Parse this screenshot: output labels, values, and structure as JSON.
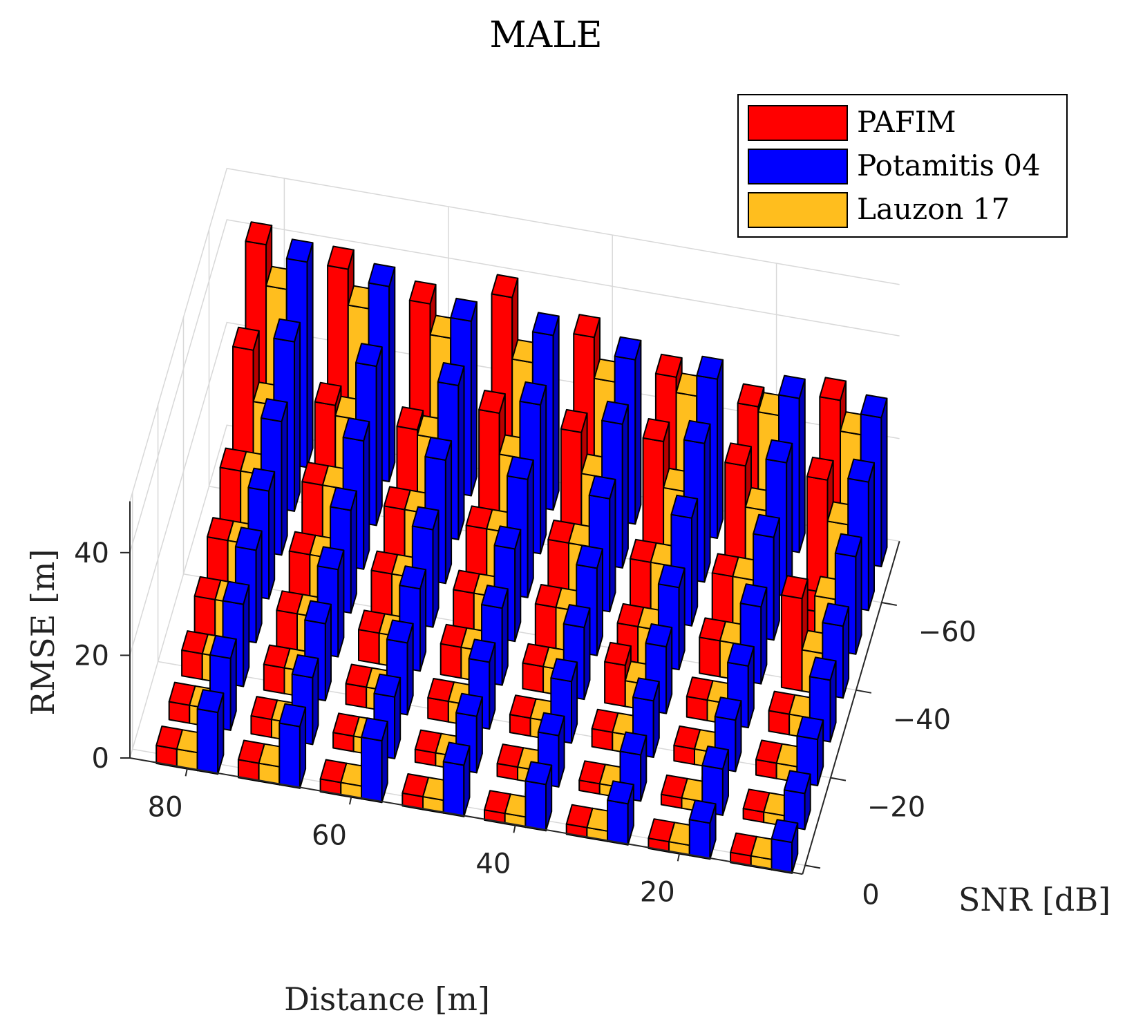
{
  "chart_data": {
    "type": "bar3d",
    "title": "MALE",
    "xlabel": "Distance [m]",
    "ylabel": "SNR [dB]",
    "zlabel": "RMSE [m]",
    "zlim": [
      0,
      50
    ],
    "distance_values": [
      85,
      80,
      75,
      70,
      65,
      60,
      55,
      50,
      45,
      40,
      35,
      30,
      25,
      20,
      15,
      10
    ],
    "snr_values": [
      0,
      -10,
      -20,
      -30,
      -40,
      -50,
      -60,
      -70
    ],
    "distance_ticks": [
      80,
      60,
      40,
      20
    ],
    "snr_ticks": [
      0,
      -20,
      -40,
      -60
    ],
    "rmse_ticks": [
      0,
      20,
      40
    ],
    "series": [
      {
        "name": "PAFIM",
        "color": "#ff0000"
      },
      {
        "name": "Potamitis 04",
        "color": "#0000ff"
      },
      {
        "name": "Lauzon 17",
        "color": "#ffbe1e"
      }
    ],
    "groups": [
      {
        "snr": 0,
        "distance": 80,
        "PAFIM": 3.5,
        "Potamitis 04": 12,
        "Lauzon 17": 3.5
      },
      {
        "snr": 0,
        "distance": 70,
        "PAFIM": 3.5,
        "Potamitis 04": 12,
        "Lauzon 17": 3.5
      },
      {
        "snr": 0,
        "distance": 60,
        "PAFIM": 2.5,
        "Potamitis 04": 12,
        "Lauzon 17": 2.5
      },
      {
        "snr": 0,
        "distance": 50,
        "PAFIM": 2.5,
        "Potamitis 04": 10,
        "Lauzon 17": 2.5
      },
      {
        "snr": 0,
        "distance": 40,
        "PAFIM": 2,
        "Potamitis 04": 9,
        "Lauzon 17": 2
      },
      {
        "snr": 0,
        "distance": 30,
        "PAFIM": 2,
        "Potamitis 04": 8,
        "Lauzon 17": 2
      },
      {
        "snr": 0,
        "distance": 20,
        "PAFIM": 2,
        "Potamitis 04": 7,
        "Lauzon 17": 2
      },
      {
        "snr": 0,
        "distance": 10,
        "PAFIM": 2,
        "Potamitis 04": 6,
        "Lauzon 17": 2
      },
      {
        "snr": -10,
        "distance": 80,
        "PAFIM": 3.5,
        "Potamitis 04": 14,
        "Lauzon 17": 3.5
      },
      {
        "snr": -10,
        "distance": 70,
        "PAFIM": 3.5,
        "Potamitis 04": 13,
        "Lauzon 17": 3.5
      },
      {
        "snr": -10,
        "distance": 60,
        "PAFIM": 3,
        "Potamitis 04": 12,
        "Lauzon 17": 3
      },
      {
        "snr": -10,
        "distance": 50,
        "PAFIM": 2.5,
        "Potamitis 04": 11,
        "Lauzon 17": 2.5
      },
      {
        "snr": -10,
        "distance": 40,
        "PAFIM": 2.5,
        "Potamitis 04": 10,
        "Lauzon 17": 2.5
      },
      {
        "snr": -10,
        "distance": 30,
        "PAFIM": 2,
        "Potamitis 04": 9,
        "Lauzon 17": 2
      },
      {
        "snr": -10,
        "distance": 20,
        "PAFIM": 2,
        "Potamitis 04": 9,
        "Lauzon 17": 2
      },
      {
        "snr": -10,
        "distance": 10,
        "PAFIM": 2,
        "Potamitis 04": 7,
        "Lauzon 17": 2
      },
      {
        "snr": -20,
        "distance": 80,
        "PAFIM": 5,
        "Potamitis 04": 16,
        "Lauzon 17": 5
      },
      {
        "snr": -20,
        "distance": 70,
        "PAFIM": 5,
        "Potamitis 04": 15,
        "Lauzon 17": 5
      },
      {
        "snr": -20,
        "distance": 60,
        "PAFIM": 4,
        "Potamitis 04": 14,
        "Lauzon 17": 4
      },
      {
        "snr": -20,
        "distance": 50,
        "PAFIM": 4,
        "Potamitis 04": 13,
        "Lauzon 17": 4
      },
      {
        "snr": -20,
        "distance": 40,
        "PAFIM": 3.5,
        "Potamitis 04": 12,
        "Lauzon 17": 3.5
      },
      {
        "snr": -20,
        "distance": 30,
        "PAFIM": 3.5,
        "Potamitis 04": 11,
        "Lauzon 17": 3.5
      },
      {
        "snr": -20,
        "distance": 20,
        "PAFIM": 3,
        "Potamitis 04": 10,
        "Lauzon 17": 3
      },
      {
        "snr": -20,
        "distance": 10,
        "PAFIM": 3,
        "Potamitis 04": 9,
        "Lauzon 17": 3
      },
      {
        "snr": -30,
        "distance": 80,
        "PAFIM": 7,
        "Potamitis 04": 18,
        "Lauzon 17": 7
      },
      {
        "snr": -30,
        "distance": 70,
        "PAFIM": 7,
        "Potamitis 04": 17,
        "Lauzon 17": 7
      },
      {
        "snr": -30,
        "distance": 60,
        "PAFIM": 6,
        "Potamitis 04": 16,
        "Lauzon 17": 6
      },
      {
        "snr": -30,
        "distance": 50,
        "PAFIM": 6,
        "Potamitis 04": 15,
        "Lauzon 17": 6
      },
      {
        "snr": -30,
        "distance": 40,
        "PAFIM": 5,
        "Potamitis 04": 14,
        "Lauzon 17": 5
      },
      {
        "snr": -30,
        "distance": 30,
        "PAFIM": 8,
        "Potamitis 04": 13,
        "Lauzon 17": 5
      },
      {
        "snr": -30,
        "distance": 20,
        "PAFIM": 4,
        "Potamitis 04": 12,
        "Lauzon 17": 4
      },
      {
        "snr": -30,
        "distance": 10,
        "PAFIM": 4,
        "Potamitis 04": 12,
        "Lauzon 17": 4
      },
      {
        "snr": -40,
        "distance": 80,
        "PAFIM": 10,
        "Potamitis 04": 21,
        "Lauzon 17": 10
      },
      {
        "snr": -40,
        "distance": 70,
        "PAFIM": 10,
        "Potamitis 04": 20,
        "Lauzon 17": 10
      },
      {
        "snr": -40,
        "distance": 60,
        "PAFIM": 9,
        "Potamitis 04": 19,
        "Lauzon 17": 9
      },
      {
        "snr": -40,
        "distance": 50,
        "PAFIM": 8,
        "Potamitis 04": 18,
        "Lauzon 17": 8
      },
      {
        "snr": -40,
        "distance": 40,
        "PAFIM": 8,
        "Potamitis 04": 17,
        "Lauzon 17": 8
      },
      {
        "snr": -40,
        "distance": 30,
        "PAFIM": 7,
        "Potamitis 04": 16,
        "Lauzon 17": 7
      },
      {
        "snr": -40,
        "distance": 20,
        "PAFIM": 7,
        "Potamitis 04": 15,
        "Lauzon 17": 7
      },
      {
        "snr": -40,
        "distance": 10,
        "PAFIM": 18,
        "Potamitis 04": 14,
        "Lauzon 17": 8
      },
      {
        "snr": -50,
        "distance": 80,
        "PAFIM": 15,
        "Potamitis 04": 26,
        "Lauzon 17": 15
      },
      {
        "snr": -50,
        "distance": 70,
        "PAFIM": 15,
        "Potamitis 04": 25,
        "Lauzon 17": 15
      },
      {
        "snr": -50,
        "distance": 60,
        "PAFIM": 13,
        "Potamitis 04": 24,
        "Lauzon 17": 13
      },
      {
        "snr": -50,
        "distance": 50,
        "PAFIM": 12,
        "Potamitis 04": 23,
        "Lauzon 17": 12
      },
      {
        "snr": -50,
        "distance": 40,
        "PAFIM": 12,
        "Potamitis 04": 22,
        "Lauzon 17": 12
      },
      {
        "snr": -50,
        "distance": 30,
        "PAFIM": 11,
        "Potamitis 04": 21,
        "Lauzon 17": 11
      },
      {
        "snr": -50,
        "distance": 20,
        "PAFIM": 11,
        "Potamitis 04": 20,
        "Lauzon 17": 11
      },
      {
        "snr": -50,
        "distance": 10,
        "PAFIM": 7,
        "Potamitis 04": 19,
        "Lauzon 17": 10
      },
      {
        "snr": -60,
        "distance": 80,
        "PAFIM": 30,
        "Potamitis 04": 33,
        "Lauzon 17": 20
      },
      {
        "snr": -60,
        "distance": 70,
        "PAFIM": 22,
        "Potamitis 04": 31,
        "Lauzon 17": 20
      },
      {
        "snr": -60,
        "distance": 60,
        "PAFIM": 20,
        "Potamitis 04": 30,
        "Lauzon 17": 19
      },
      {
        "snr": -60,
        "distance": 50,
        "PAFIM": 26,
        "Potamitis 04": 29,
        "Lauzon 17": 18
      },
      {
        "snr": -60,
        "distance": 40,
        "PAFIM": 25,
        "Potamitis 04": 28,
        "Lauzon 17": 17
      },
      {
        "snr": -60,
        "distance": 30,
        "PAFIM": 26,
        "Potamitis 04": 27,
        "Lauzon 17": 17
      },
      {
        "snr": -60,
        "distance": 20,
        "PAFIM": 24,
        "Potamitis 04": 26,
        "Lauzon 17": 16
      },
      {
        "snr": -60,
        "distance": 10,
        "PAFIM": 24,
        "Potamitis 04": 25,
        "Lauzon 17": 16
      },
      {
        "snr": -70,
        "distance": 80,
        "PAFIM": 42,
        "Potamitis 04": 40,
        "Lauzon 17": 34
      },
      {
        "snr": -70,
        "distance": 70,
        "PAFIM": 40,
        "Potamitis 04": 38,
        "Lauzon 17": 33
      },
      {
        "snr": -70,
        "distance": 60,
        "PAFIM": 36,
        "Potamitis 04": 34,
        "Lauzon 17": 30
      },
      {
        "snr": -70,
        "distance": 50,
        "PAFIM": 40,
        "Potamitis 04": 34,
        "Lauzon 17": 28
      },
      {
        "snr": -70,
        "distance": 40,
        "PAFIM": 35,
        "Potamitis 04": 32,
        "Lauzon 17": 27
      },
      {
        "snr": -70,
        "distance": 30,
        "PAFIM": 30,
        "Potamitis 04": 31,
        "Lauzon 17": 27
      },
      {
        "snr": -70,
        "distance": 20,
        "PAFIM": 27,
        "Potamitis 04": 30,
        "Lauzon 17": 26
      },
      {
        "snr": -70,
        "distance": 10,
        "PAFIM": 31,
        "Potamitis 04": 29,
        "Lauzon 17": 25
      }
    ]
  }
}
